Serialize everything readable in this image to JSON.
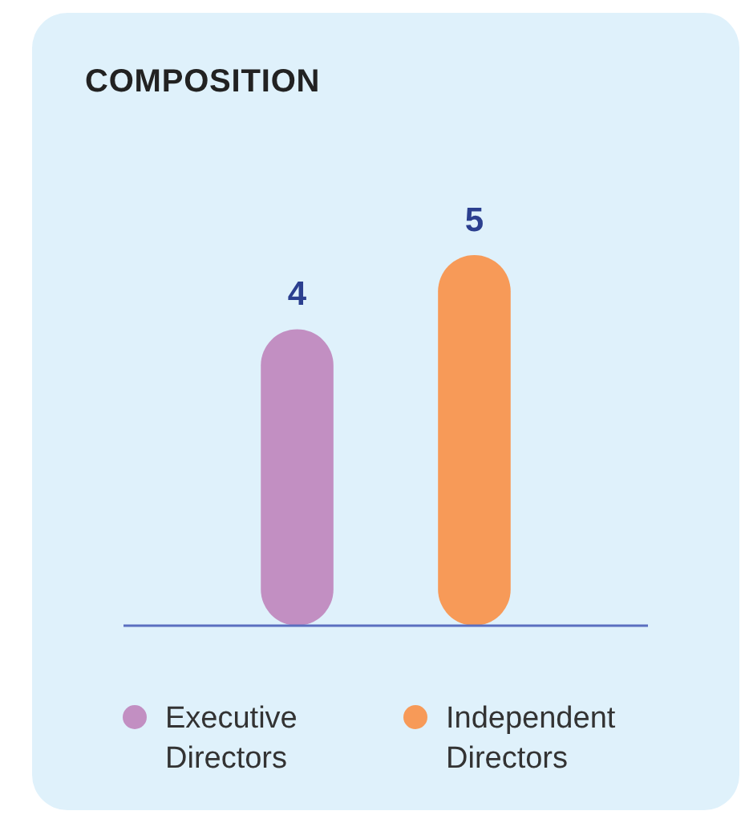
{
  "chart_data": {
    "type": "bar",
    "title": "COMPOSITION",
    "categories": [
      "Executive Directors",
      "Independent Directors"
    ],
    "values": [
      4,
      5
    ],
    "colors": [
      "#c28fc2",
      "#f79a58"
    ],
    "data_labels": true
  }
}
